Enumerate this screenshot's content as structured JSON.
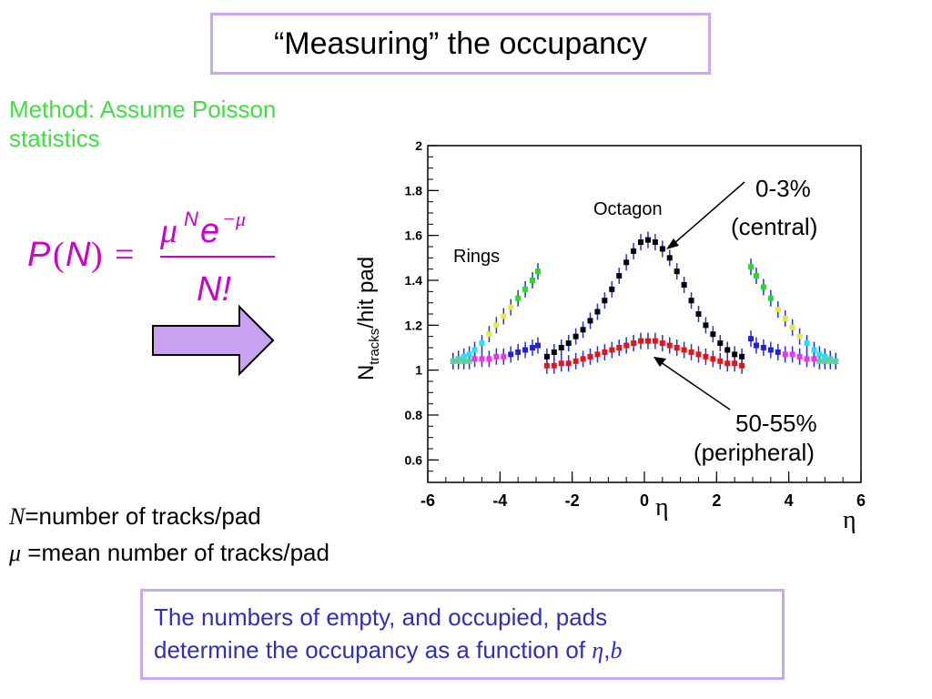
{
  "slide": {
    "title": "“Measuring” the occupancy",
    "method_line1": "Method: Assume Poisson",
    "method_line2": "statistics",
    "formula": {
      "lhs_P": "P",
      "lhs_N": "N",
      "mu": "μ",
      "sup_N": "N",
      "e": "e",
      "sup_minus_mu": "−μ",
      "denominator": "N!"
    },
    "def_N_symbol": "N",
    "def_N_text": "=number of tracks/pad",
    "def_mu_symbol": "μ",
    "def_mu_text": " =mean number of tracks/pad",
    "note_line1": "The numbers of empty, and occupied, pads",
    "note_line2_prefix": "determine the occupancy as a function of ",
    "note_eta": "η",
    "note_sep": ",",
    "note_b": "b"
  },
  "colors": {
    "title_border": "#c9a8ee",
    "method_text": "#44dd44",
    "formula": "#cc00cc",
    "arrow_fill": "#c8a2f0",
    "note_text": "#2f2fb8",
    "central_series": "#000000",
    "peripheral_series": "#ee1111",
    "error_bars": "#2233dd"
  },
  "chart_data": {
    "type": "scatter",
    "xlim": [
      -6,
      6
    ],
    "ylim": [
      0.5,
      2.0
    ],
    "x_ticks": [
      "-6",
      "-4",
      "-2",
      "0",
      "2",
      "4",
      "6"
    ],
    "y_ticks": [
      "0.6",
      "0.8",
      "1",
      "1.2",
      "1.4",
      "1.6",
      "1.8",
      "2"
    ],
    "x_tick_values": [
      -6,
      -4,
      -2,
      0,
      2,
      4,
      6
    ],
    "y_tick_values": [
      0.6,
      0.8,
      1.0,
      1.2,
      1.4,
      1.6,
      1.8,
      2.0
    ],
    "ylabel_main": "N",
    "ylabel_sub": "tracks",
    "ylabel_rest": "/hit pad",
    "xlabel_center": "η",
    "xlabel_right": "η",
    "annotations": {
      "octagon": "Octagon",
      "rings": "Rings",
      "central_line1": "0-3%",
      "central_line2": "(central)",
      "peripheral_line1": "50-55%",
      "peripheral_line2": "(peripheral)"
    },
    "series": [
      {
        "group": "octagon-central",
        "color": "#000000",
        "x": [
          -2.7,
          -2.5,
          -2.3,
          -2.1,
          -1.9,
          -1.7,
          -1.5,
          -1.3,
          -1.1,
          -0.9,
          -0.7,
          -0.5,
          -0.3,
          -0.1,
          0.1,
          0.3,
          0.5,
          0.7,
          0.9,
          1.1,
          1.3,
          1.5,
          1.7,
          1.9,
          2.1,
          2.3,
          2.5,
          2.7
        ],
        "y": [
          1.06,
          1.08,
          1.1,
          1.12,
          1.15,
          1.18,
          1.22,
          1.26,
          1.31,
          1.36,
          1.42,
          1.48,
          1.53,
          1.57,
          1.58,
          1.57,
          1.54,
          1.5,
          1.44,
          1.38,
          1.31,
          1.25,
          1.2,
          1.16,
          1.12,
          1.09,
          1.07,
          1.06
        ]
      },
      {
        "group": "octagon-peripheral",
        "color": "#ee1111",
        "x": [
          -2.7,
          -2.5,
          -2.3,
          -2.1,
          -1.9,
          -1.7,
          -1.5,
          -1.3,
          -1.1,
          -0.9,
          -0.7,
          -0.5,
          -0.3,
          -0.1,
          0.1,
          0.3,
          0.5,
          0.7,
          0.9,
          1.1,
          1.3,
          1.5,
          1.7,
          1.9,
          2.1,
          2.3,
          2.5,
          2.7
        ],
        "y": [
          1.02,
          1.02,
          1.03,
          1.03,
          1.04,
          1.05,
          1.06,
          1.07,
          1.08,
          1.09,
          1.1,
          1.11,
          1.12,
          1.13,
          1.13,
          1.13,
          1.12,
          1.11,
          1.1,
          1.09,
          1.08,
          1.07,
          1.06,
          1.05,
          1.04,
          1.03,
          1.03,
          1.02
        ]
      },
      {
        "group": "rings-left-central",
        "x": [
          -5.3,
          -5.15,
          -5.0,
          -4.85,
          -4.7,
          -4.5,
          -4.3,
          -4.1,
          -3.9,
          -3.7,
          -3.5,
          -3.3,
          -3.1,
          -2.95
        ],
        "y": [
          1.04,
          1.05,
          1.06,
          1.07,
          1.09,
          1.12,
          1.16,
          1.2,
          1.24,
          1.28,
          1.32,
          1.36,
          1.4,
          1.44
        ],
        "colors": [
          "#5fcfa0",
          "#5fcfa0",
          "#22e0ff",
          "#22e0ff",
          "#22e0ff",
          "#22e0ff",
          "#e8e840",
          "#e8e840",
          "#e8e840",
          "#e8e840",
          "#22dd22",
          "#22dd22",
          "#22dd22",
          "#22dd22"
        ]
      },
      {
        "group": "rings-left-peripheral",
        "x": [
          -5.3,
          -5.15,
          -5.0,
          -4.85,
          -4.7,
          -4.5,
          -4.3,
          -4.1,
          -3.9,
          -3.7,
          -3.5,
          -3.3,
          -3.1,
          -2.95
        ],
        "y": [
          1.04,
          1.04,
          1.04,
          1.04,
          1.05,
          1.05,
          1.05,
          1.06,
          1.06,
          1.07,
          1.08,
          1.09,
          1.1,
          1.11
        ],
        "colors": [
          "#5fcfa0",
          "#5fcfa0",
          "#5fcfa0",
          "#5fcfa0",
          "#ee33ee",
          "#ee33ee",
          "#ee33ee",
          "#ee33ee",
          "#ee33ee",
          "#2222dd",
          "#2222dd",
          "#2222dd",
          "#2222dd",
          "#2222dd"
        ]
      },
      {
        "group": "rings-right-central",
        "x": [
          2.95,
          3.1,
          3.3,
          3.5,
          3.7,
          3.9,
          4.1,
          4.3,
          4.5,
          4.7,
          4.85,
          5.0,
          5.15,
          5.3
        ],
        "y": [
          1.46,
          1.42,
          1.37,
          1.32,
          1.27,
          1.23,
          1.19,
          1.15,
          1.12,
          1.09,
          1.07,
          1.06,
          1.05,
          1.04
        ],
        "colors": [
          "#22dd22",
          "#22dd22",
          "#22dd22",
          "#22dd22",
          "#e8e840",
          "#e8e840",
          "#e8e840",
          "#e8e840",
          "#22e0ff",
          "#22e0ff",
          "#22e0ff",
          "#22e0ff",
          "#5fcfa0",
          "#5fcfa0"
        ]
      },
      {
        "group": "rings-right-peripheral",
        "x": [
          2.95,
          3.1,
          3.3,
          3.5,
          3.7,
          3.9,
          4.1,
          4.3,
          4.5,
          4.7,
          4.85,
          5.0,
          5.15,
          5.3
        ],
        "y": [
          1.14,
          1.11,
          1.1,
          1.09,
          1.08,
          1.07,
          1.07,
          1.06,
          1.05,
          1.05,
          1.04,
          1.04,
          1.04,
          1.04
        ],
        "colors": [
          "#2222dd",
          "#2222dd",
          "#2222dd",
          "#2222dd",
          "#2222dd",
          "#ee33ee",
          "#ee33ee",
          "#ee33ee",
          "#ee33ee",
          "#ee33ee",
          "#5fcfa0",
          "#5fcfa0",
          "#5fcfa0",
          "#5fcfa0"
        ]
      }
    ]
  }
}
